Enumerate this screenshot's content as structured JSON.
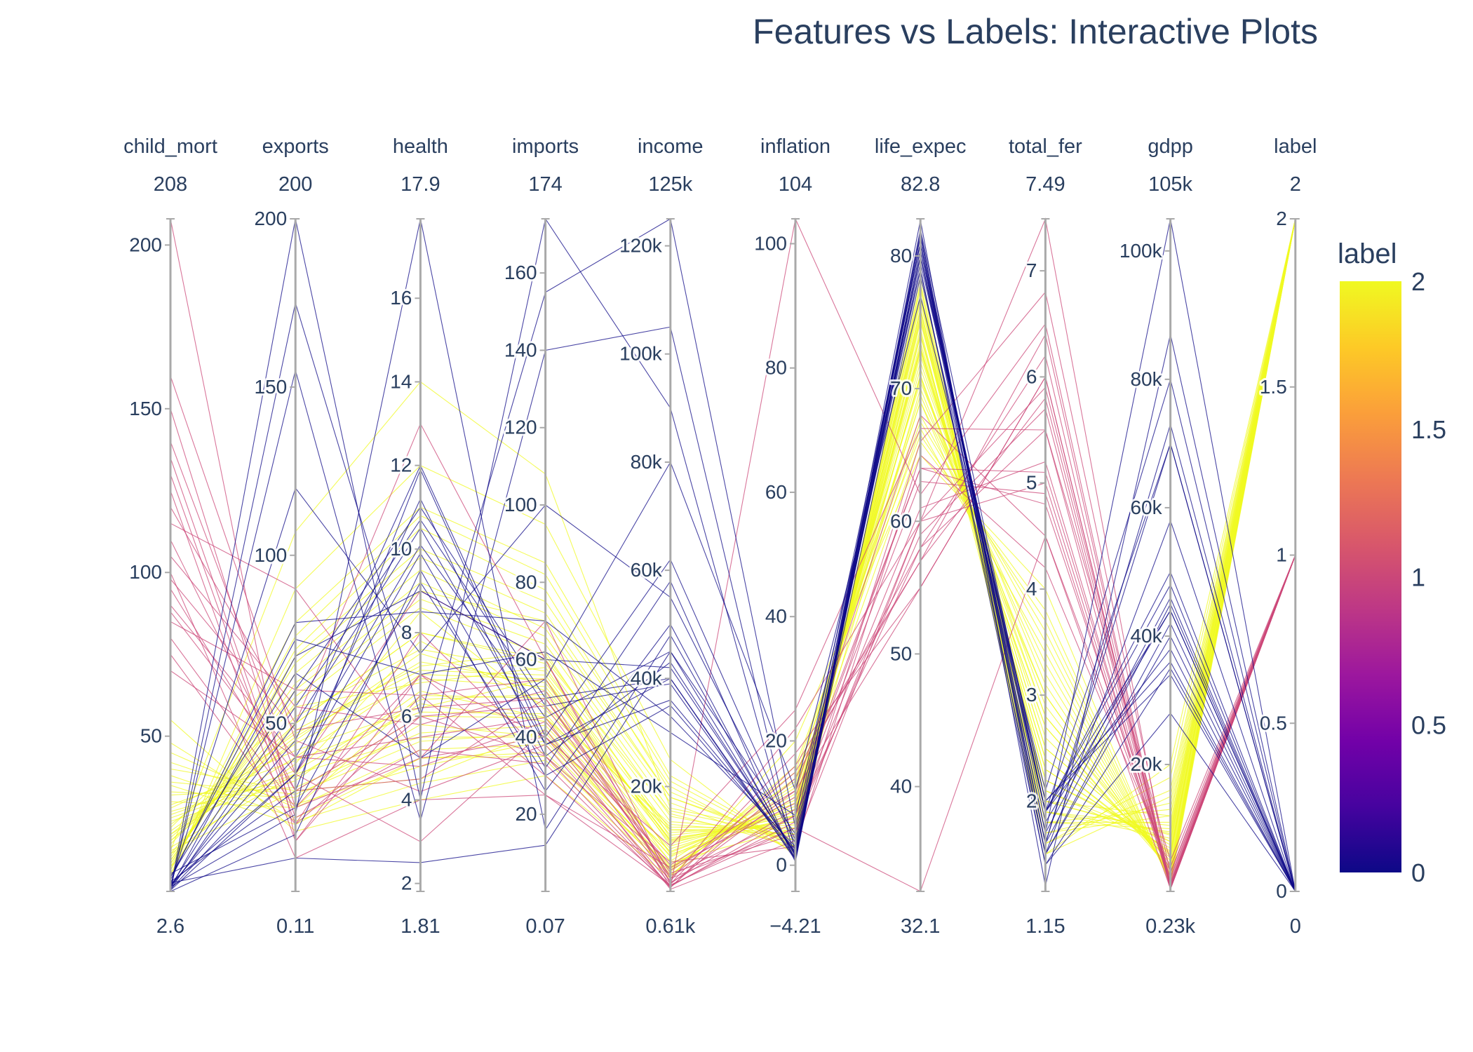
{
  "chart_data": {
    "type": "parallel_coordinates",
    "title": "Features vs Labels: Interactive Plots",
    "dimensions": [
      {
        "name": "child_mort",
        "range": [
          2.6,
          208
        ],
        "max_label": "208",
        "min_label": "2.6",
        "ticks": [
          50,
          100,
          150,
          200
        ],
        "tick_labels": [
          "50",
          "100",
          "150",
          "200"
        ]
      },
      {
        "name": "exports",
        "range": [
          0.109,
          200
        ],
        "max_label": "200",
        "min_label": "0.11",
        "ticks": [
          50,
          100,
          150,
          200
        ],
        "tick_labels": [
          "50",
          "100",
          "150",
          "200"
        ]
      },
      {
        "name": "health",
        "range": [
          1.81,
          17.9
        ],
        "max_label": "17.9",
        "min_label": "1.81",
        "ticks": [
          2,
          4,
          6,
          8,
          10,
          12,
          14,
          16
        ],
        "tick_labels": [
          "2",
          "4",
          "6",
          "8",
          "10",
          "12",
          "14",
          "16"
        ]
      },
      {
        "name": "imports",
        "range": [
          0.0659,
          174
        ],
        "max_label": "174",
        "min_label": "0.07",
        "ticks": [
          20,
          40,
          60,
          80,
          100,
          120,
          140,
          160
        ],
        "tick_labels": [
          "20",
          "40",
          "60",
          "80",
          "100",
          "120",
          "140",
          "160"
        ]
      },
      {
        "name": "income",
        "range": [
          609,
          125000
        ],
        "max_label": "125k",
        "min_label": "0.61k",
        "ticks": [
          20000,
          40000,
          60000,
          80000,
          100000,
          120000
        ],
        "tick_labels": [
          "20k",
          "40k",
          "60k",
          "80k",
          "100k",
          "120k"
        ]
      },
      {
        "name": "inflation",
        "range": [
          -4.21,
          104
        ],
        "max_label": "104",
        "min_label": "−4.21",
        "ticks": [
          0,
          20,
          40,
          60,
          80,
          100
        ],
        "tick_labels": [
          "0",
          "20",
          "40",
          "60",
          "80",
          "100"
        ]
      },
      {
        "name": "life_expec",
        "range": [
          32.1,
          82.8
        ],
        "max_label": "82.8",
        "min_label": "32.1",
        "ticks": [
          40,
          50,
          60,
          70,
          80
        ],
        "tick_labels": [
          "40",
          "50",
          "60",
          "70",
          "80"
        ]
      },
      {
        "name": "total_fer",
        "range": [
          1.15,
          7.49
        ],
        "max_label": "7.49",
        "min_label": "1.15",
        "ticks": [
          2,
          3,
          4,
          5,
          6,
          7
        ],
        "tick_labels": [
          "2",
          "3",
          "4",
          "5",
          "6",
          "7"
        ]
      },
      {
        "name": "gdpp",
        "range": [
          231,
          105000
        ],
        "max_label": "105k",
        "min_label": "0.23k",
        "ticks": [
          20000,
          40000,
          60000,
          80000,
          100000
        ],
        "tick_labels": [
          "20k",
          "40k",
          "60k",
          "80k",
          "100k"
        ]
      },
      {
        "name": "label",
        "range": [
          0,
          2
        ],
        "max_label": "2",
        "min_label": "0",
        "ticks": [
          0,
          0.5,
          1,
          1.5,
          2
        ],
        "tick_labels": [
          "0",
          "0.5",
          "1",
          "1.5",
          "2"
        ]
      }
    ],
    "color_by": "label",
    "colorscale": "Plasma",
    "colorscale_stops": [
      "#0d0887",
      "#46039f",
      "#7201a8",
      "#9c179e",
      "#bd3786",
      "#d8576b",
      "#ed7953",
      "#fb9f3a",
      "#fdca26",
      "#f0f921"
    ],
    "line_colors": {
      "label_0": "#0d0887",
      "label_1": "#cc4778",
      "label_2": "#f0f921"
    },
    "colorbar": {
      "title": "label",
      "range": [
        0,
        2
      ],
      "ticks": [
        0,
        0.5,
        1,
        1.5,
        2
      ],
      "tick_labels": [
        "0",
        "0.5",
        "1",
        "1.5",
        "2"
      ]
    },
    "records": [
      [
        2.6,
        17,
        9.5,
        26,
        50000,
        1,
        80.5,
        1.9,
        50000,
        0
      ],
      [
        3.2,
        40,
        10.1,
        45,
        45000,
        1.5,
        81,
        1.8,
        44000,
        0
      ],
      [
        4.1,
        60,
        11,
        50,
        40000,
        0.8,
        81.5,
        1.5,
        42000,
        0
      ],
      [
        3.5,
        70,
        9,
        60,
        42000,
        2,
        80,
        1.9,
        38000,
        0
      ],
      [
        4.5,
        120,
        7.5,
        100,
        55000,
        3.5,
        79,
        1.5,
        58000,
        0
      ],
      [
        2.8,
        175,
        6,
        155,
        125000,
        6,
        81,
        1.7,
        105000,
        0
      ],
      [
        3,
        200,
        4,
        174,
        90000,
        1,
        82.7,
        1.2,
        87000,
        0
      ],
      [
        5.5,
        30,
        11.9,
        38,
        40000,
        1.2,
        80,
        1.9,
        44000,
        0
      ],
      [
        4,
        23,
        17.9,
        16,
        48000,
        1.5,
        78.5,
        1.9,
        48000,
        0
      ],
      [
        3.8,
        50,
        10.5,
        38,
        36000,
        2.5,
        81,
        1.4,
        35000,
        0
      ],
      [
        6,
        80,
        8.5,
        70,
        33000,
        3,
        80,
        2,
        34000,
        0
      ],
      [
        2.9,
        35,
        9.9,
        32,
        58000,
        0.5,
        82,
        1.9,
        70000,
        0
      ],
      [
        4.3,
        45,
        12,
        40,
        62000,
        4,
        81,
        1.6,
        70000,
        0
      ],
      [
        7,
        65,
        5,
        55,
        80000,
        12,
        77,
        2.1,
        80000,
        0
      ],
      [
        5.2,
        10,
        2.5,
        12,
        45000,
        5,
        80,
        1.6,
        45000,
        0
      ],
      [
        3.1,
        55,
        10.7,
        48,
        39000,
        1,
        81.8,
        1.5,
        40000,
        0
      ],
      [
        6.8,
        75,
        7,
        62,
        30000,
        8,
        79,
        1.4,
        28000,
        0
      ],
      [
        4.9,
        35,
        11.2,
        35,
        43000,
        1.8,
        80.5,
        1.7,
        46000,
        0
      ],
      [
        3.6,
        155,
        3.5,
        140,
        105000,
        2,
        81.5,
        1.6,
        73000,
        0
      ],
      [
        8,
        25,
        9.2,
        30,
        35000,
        2.2,
        79.5,
        2,
        36000,
        0
      ],
      [
        150,
        25,
        5,
        40,
        2000,
        12,
        55,
        6,
        700,
        1
      ],
      [
        130,
        20,
        6,
        35,
        1500,
        8,
        58,
        5.5,
        550,
        1
      ],
      [
        110,
        30,
        4.5,
        50,
        3000,
        15,
        57,
        5.8,
        1200,
        1
      ],
      [
        208,
        15,
        7,
        30,
        1800,
        6,
        32.1,
        4.5,
        650,
        1
      ],
      [
        90,
        40,
        5.5,
        45,
        2500,
        22,
        60,
        5,
        1500,
        1
      ],
      [
        120,
        50,
        13,
        60,
        1200,
        104,
        62,
        6.5,
        900,
        1
      ],
      [
        100,
        10,
        4,
        25,
        5000,
        10,
        64,
        4.8,
        2500,
        1
      ],
      [
        85,
        60,
        6.5,
        55,
        4000,
        5,
        66,
        6.8,
        3000,
        1
      ],
      [
        140,
        35,
        3,
        42,
        1000,
        4,
        60,
        7.49,
        700,
        1
      ],
      [
        75,
        20,
        8,
        35,
        6000,
        3,
        65,
        4.2,
        4000,
        1
      ],
      [
        115,
        90,
        5,
        70,
        2000,
        18,
        55,
        6,
        1000,
        1
      ],
      [
        95,
        30,
        6,
        48,
        3500,
        8,
        61,
        5.2,
        1800,
        1
      ],
      [
        160,
        45,
        4.2,
        38,
        1400,
        14,
        58,
        6.2,
        650,
        1
      ],
      [
        80,
        25,
        7,
        40,
        9000,
        25,
        67,
        5.5,
        5000,
        1
      ],
      [
        105,
        55,
        5.8,
        52,
        2200,
        9,
        63,
        4.9,
        1200,
        1
      ],
      [
        125,
        15,
        6.5,
        25,
        1700,
        7,
        59,
        5.7,
        800,
        1
      ],
      [
        70,
        40,
        4.8,
        44,
        5500,
        12,
        68,
        4.5,
        3200,
        1
      ],
      [
        88,
        35,
        9,
        60,
        3000,
        6,
        60,
        5.9,
        1500,
        1
      ],
      [
        135,
        22,
        5.2,
        33,
        1300,
        16,
        57,
        6.4,
        600,
        1
      ],
      [
        98,
        48,
        6.2,
        50,
        4500,
        11,
        64,
        5.1,
        2200,
        1
      ],
      [
        15,
        30,
        6,
        45,
        12000,
        5,
        75,
        2.2,
        8000,
        2
      ],
      [
        20,
        40,
        7,
        55,
        10000,
        8,
        73,
        2.5,
        6000,
        2
      ],
      [
        10,
        50,
        8,
        60,
        15000,
        3,
        76,
        1.8,
        10000,
        2
      ],
      [
        25,
        35,
        5.5,
        40,
        8000,
        10,
        72,
        2.8,
        4500,
        2
      ],
      [
        30,
        25,
        6.5,
        50,
        6000,
        6,
        70,
        3,
        3000,
        2
      ],
      [
        12,
        60,
        9,
        70,
        18000,
        4,
        77,
        1.7,
        12000,
        2
      ],
      [
        18,
        45,
        7.5,
        52,
        11000,
        7,
        74,
        2.1,
        7000,
        2
      ],
      [
        8,
        70,
        10,
        75,
        20000,
        2,
        78,
        1.5,
        15000,
        2
      ],
      [
        35,
        20,
        5,
        35,
        5000,
        12,
        69,
        3.3,
        2500,
        2
      ],
      [
        22,
        55,
        6.8,
        58,
        9000,
        9,
        73,
        2.4,
        5500,
        2
      ],
      [
        14,
        38,
        8.5,
        47,
        13000,
        5,
        75.5,
        2,
        9000,
        2
      ],
      [
        40,
        30,
        4.5,
        42,
        4500,
        15,
        68,
        3.5,
        2000,
        2
      ],
      [
        9,
        80,
        11,
        85,
        22000,
        3,
        77.5,
        1.6,
        18000,
        2
      ],
      [
        28,
        42,
        6.2,
        55,
        7500,
        8,
        71,
        2.7,
        4000,
        2
      ],
      [
        16,
        35,
        7.8,
        48,
        12500,
        6,
        74.5,
        1.9,
        8500,
        2
      ],
      [
        45,
        25,
        5.2,
        38,
        3800,
        11,
        66,
        3.8,
        1800,
        2
      ],
      [
        11,
        65,
        9.5,
        68,
        17000,
        2.5,
        76.5,
        1.8,
        11000,
        2
      ],
      [
        19,
        48,
        7.2,
        62,
        10500,
        7,
        73.5,
        2.3,
        6500,
        2
      ],
      [
        24,
        33,
        6.6,
        45,
        8500,
        9,
        72.5,
        2.6,
        5000,
        2
      ],
      [
        13,
        58,
        8.8,
        64,
        14500,
        4,
        75.8,
        1.9,
        9500,
        2
      ],
      [
        33,
        28,
        5.8,
        40,
        5500,
        13,
        70.5,
        3.1,
        2800,
        2
      ],
      [
        7,
        90,
        12,
        95,
        25000,
        1.5,
        78.5,
        1.5,
        20000,
        2
      ],
      [
        26,
        36,
        6.4,
        51,
        7800,
        10,
        71.5,
        2.9,
        3500,
        2
      ],
      [
        17,
        52,
        7.6,
        57,
        11500,
        6.5,
        74,
        2.2,
        7500,
        2
      ],
      [
        38,
        22,
        5,
        36,
        4200,
        14,
        67.5,
        3.6,
        1900,
        2
      ],
      [
        21,
        44,
        6.9,
        53,
        9500,
        8.5,
        73,
        2.5,
        6000,
        2
      ],
      [
        55,
        18,
        4,
        30,
        3000,
        20,
        65,
        4,
        1200,
        2
      ],
      [
        10,
        72,
        10.5,
        78,
        19000,
        3,
        77,
        1.7,
        14000,
        2
      ],
      [
        29,
        39,
        6.1,
        46,
        7000,
        9.5,
        71,
        2.8,
        3800,
        2
      ],
      [
        15,
        107,
        14,
        108,
        16000,
        5,
        76,
        2,
        12000,
        2
      ],
      [
        23,
        47,
        7.1,
        56,
        9800,
        7.5,
        72.8,
        2.4,
        5800,
        2
      ],
      [
        12,
        62,
        9.2,
        66,
        15500,
        4.5,
        75.2,
        1.9,
        10500,
        2
      ],
      [
        42,
        26,
        4.8,
        39,
        4800,
        12.5,
        67,
        3.4,
        2200,
        2
      ],
      [
        18,
        50,
        8,
        59,
        12000,
        6,
        74.2,
        2.1,
        8000,
        2
      ],
      [
        27,
        34,
        6.3,
        44,
        7200,
        10.5,
        70.8,
        2.7,
        3600,
        2
      ],
      [
        9,
        76,
        10.8,
        82,
        21000,
        2.8,
        77.8,
        1.6,
        16000,
        2
      ],
      [
        36,
        29,
        5.4,
        41,
        5200,
        11.5,
        69.5,
        3.2,
        2600,
        2
      ],
      [
        14,
        56,
        8.6,
        61,
        13500,
        5.5,
        75.4,
        2,
        9200,
        2
      ],
      [
        48,
        21,
        4.4,
        34,
        3500,
        16,
        66.5,
        3.7,
        1600,
        2
      ],
      [
        20,
        46,
        7.3,
        54,
        10200,
        8,
        73.2,
        2.3,
        6300,
        2
      ],
      [
        32,
        31,
        5.6,
        43,
        6200,
        13.5,
        69,
        3,
        3100,
        2
      ],
      [
        11,
        68,
        9.8,
        72,
        18000,
        3.5,
        76.8,
        1.8,
        13000,
        2
      ]
    ]
  }
}
